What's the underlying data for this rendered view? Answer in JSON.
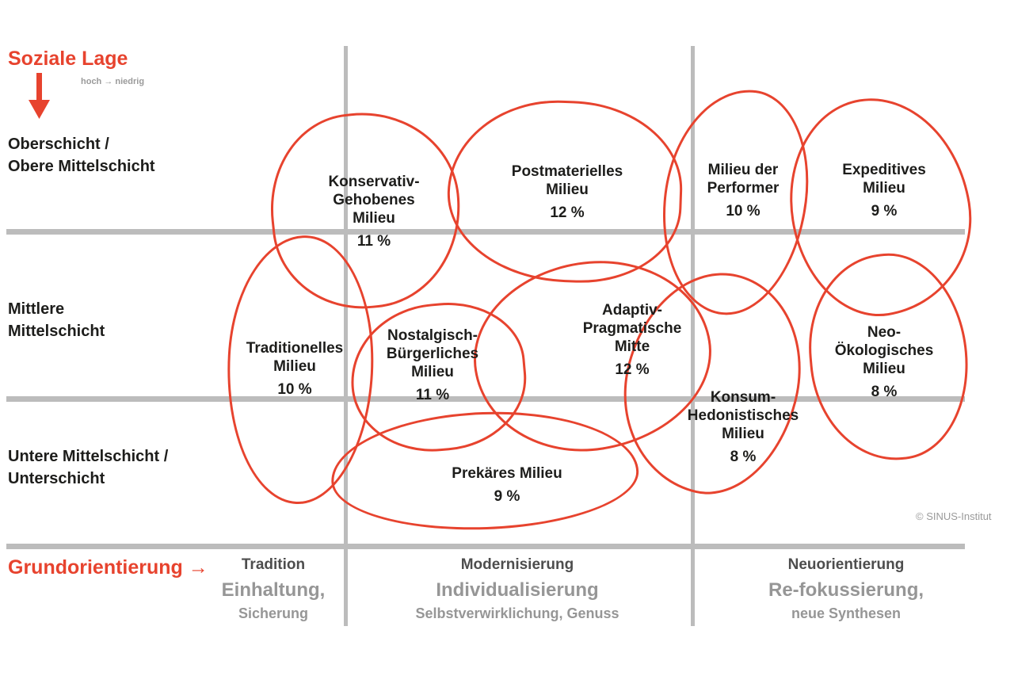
{
  "axes": {
    "y": {
      "title": "Soziale Lage",
      "arrow": "↓",
      "note": "hoch → niedrig",
      "rows": [
        {
          "line1": "Oberschicht /",
          "line2": "Obere Mittelschicht"
        },
        {
          "line1": "Mittlere",
          "line2": "Mittelschicht"
        },
        {
          "line1": "Untere Mittelschicht /",
          "line2": "Unterschicht"
        }
      ]
    },
    "x": {
      "title": "Grundorientierung",
      "arrow": "→",
      "columns": [
        {
          "header": "Tradition",
          "keyword": "Einhaltung,",
          "subline": "Sicherung"
        },
        {
          "header": "Modernisierung",
          "keyword": "Individualisierung",
          "subline": "Selbstverwirklichung, Genuss"
        },
        {
          "header": "Neuorientierung",
          "keyword": "Re-fokussierung,",
          "subline": "neue Synthesen"
        }
      ]
    }
  },
  "credit": "© SINUS-Institut",
  "milieus": [
    {
      "id": "konservativ-gehobenes",
      "name_lines": [
        "Konservativ-",
        "Gehobenes",
        "Milieu"
      ],
      "share": "11 %"
    },
    {
      "id": "postmaterielles",
      "name_lines": [
        "Postmaterielles",
        "Milieu"
      ],
      "share": "12 %"
    },
    {
      "id": "performer",
      "name_lines": [
        "Milieu der",
        "Performer"
      ],
      "share": "10 %"
    },
    {
      "id": "expeditives",
      "name_lines": [
        "Expeditives",
        "Milieu"
      ],
      "share": "9 %"
    },
    {
      "id": "traditionelles",
      "name_lines": [
        "Traditionelles",
        "Milieu"
      ],
      "share": "10 %"
    },
    {
      "id": "nostalgisch-buergerliches",
      "name_lines": [
        "Nostalgisch-",
        "Bürgerliches",
        "Milieu"
      ],
      "share": "11 %"
    },
    {
      "id": "adaptiv-pragmatische-mitte",
      "name_lines": [
        "Adaptiv-",
        "Pragmatische",
        "Mitte"
      ],
      "share": "12 %"
    },
    {
      "id": "neo-oekologisches",
      "name_lines": [
        "Neo-",
        "Ökologisches",
        "Milieu"
      ],
      "share": "8 %"
    },
    {
      "id": "konsum-hedonistisches",
      "name_lines": [
        "Konsum-",
        "Hedonistisches",
        "Milieu"
      ],
      "share": "8 %"
    },
    {
      "id": "prekaeres",
      "name_lines": [
        "Prekäres Milieu"
      ],
      "share": "9 %"
    }
  ],
  "colors": {
    "accent_red": "#e7432e",
    "grid": "#bcbcbc",
    "text_dark": "#1d1d1b",
    "text_gray": "#9a9a9a"
  },
  "chart_data": {
    "type": "table",
    "columns": [
      "Milieu",
      "Anteil"
    ],
    "rows": [
      [
        "Konservativ-Gehobenes Milieu",
        "11 %"
      ],
      [
        "Postmaterielles Milieu",
        "12 %"
      ],
      [
        "Milieu der Performer",
        "10 %"
      ],
      [
        "Expeditives Milieu",
        "9 %"
      ],
      [
        "Traditionelles Milieu",
        "10 %"
      ],
      [
        "Nostalgisch-Bürgerliches Milieu",
        "11 %"
      ],
      [
        "Adaptiv-Pragmatische Mitte",
        "12 %"
      ],
      [
        "Neo-Ökologisches Milieu",
        "8 %"
      ],
      [
        "Konsum-Hedonistisches Milieu",
        "8 %"
      ],
      [
        "Prekäres Milieu",
        "9 %"
      ]
    ],
    "x_axis_zones": [
      "Tradition",
      "Modernisierung",
      "Neuorientierung"
    ],
    "y_axis_levels": [
      "Oberschicht / Obere Mittelschicht",
      "Mittlere Mittelschicht",
      "Untere Mittelschicht / Unterschicht"
    ]
  }
}
